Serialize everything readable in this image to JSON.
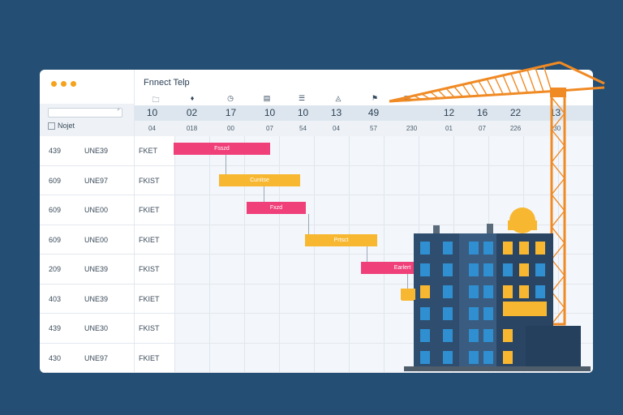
{
  "window": {
    "title": "Fnnect Telp"
  },
  "sidebar": {
    "label": "Nojet",
    "search_placeholder": ""
  },
  "timeline": {
    "header_numbers": [
      "10",
      "02",
      "17",
      "10",
      "10",
      "13",
      "49",
      "",
      "12",
      "16",
      "22",
      "13"
    ],
    "header_sub": [
      "04",
      "018",
      "00",
      "07",
      "54",
      "04",
      "57",
      "230",
      "01",
      "07",
      "226",
      "230"
    ],
    "header_icons": [
      "folder-icon",
      "pin-icon",
      "clock-icon",
      "clipboard-icon",
      "list-icon",
      "drop-icon",
      "flag-icon",
      "grid-icon"
    ]
  },
  "rows": [
    {
      "id": "439",
      "code": "UNE39",
      "type": "FKET"
    },
    {
      "id": "609",
      "code": "UNE97",
      "type": "FKIST"
    },
    {
      "id": "609",
      "code": "UNE00",
      "type": "FKIET"
    },
    {
      "id": "609",
      "code": "UNE00",
      "type": "FKIET"
    },
    {
      "id": "209",
      "code": "UNE39",
      "type": "FKIST"
    },
    {
      "id": "403",
      "code": "UNE39",
      "type": "FKIET"
    },
    {
      "id": "439",
      "code": "UNE30",
      "type": "FKIST"
    },
    {
      "id": "430",
      "code": "UNE97",
      "type": "FKIET"
    }
  ],
  "tasks": [
    {
      "label": "Fsszd",
      "color": "pink"
    },
    {
      "label": "Cunitse",
      "color": "orange"
    },
    {
      "label": "Fxzd",
      "color": "pink"
    },
    {
      "label": "Prtsct",
      "color": "orange"
    },
    {
      "label": "Earlert",
      "color": "pink"
    },
    {
      "label": "",
      "color": "orange"
    }
  ],
  "colors": {
    "background": "#244e73",
    "accent_orange": "#f7b731",
    "accent_pink": "#f0407a",
    "crane": "#f08a24",
    "building": "#2f4d6e",
    "window_blue": "#2f8fd1",
    "window_yellow": "#f7b731"
  }
}
